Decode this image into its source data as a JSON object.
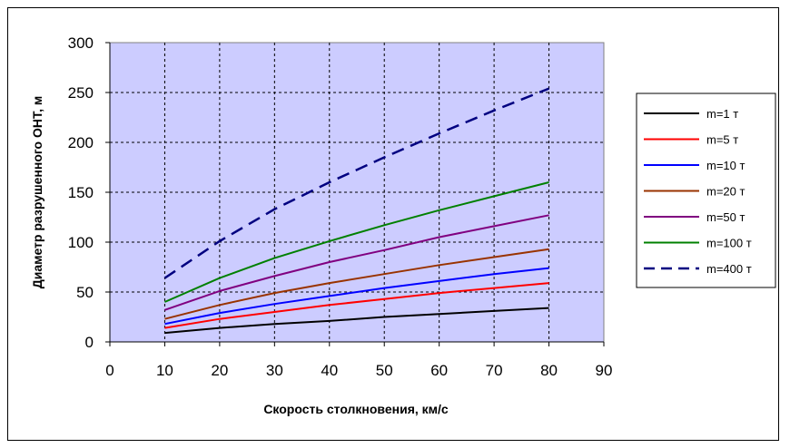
{
  "chart_data": {
    "type": "line",
    "title": "",
    "xlabel": "Скорость столкновения, км/с",
    "ylabel": "Диаметр разрушенного ОНТ, м",
    "xlim": [
      0,
      90
    ],
    "ylim": [
      0,
      300
    ],
    "x_ticks": [
      "0",
      "10",
      "20",
      "30",
      "40",
      "50",
      "60",
      "70",
      "80",
      "90"
    ],
    "y_ticks": [
      "0",
      "50",
      "100",
      "150",
      "200",
      "250",
      "300"
    ],
    "grid": true,
    "legend_position": "right",
    "plot_background": "#ccccff",
    "x": [
      10,
      20,
      30,
      40,
      50,
      60,
      70,
      80
    ],
    "series": [
      {
        "name": "m=1 т",
        "color": "#000000",
        "dashed": false,
        "values": [
          9,
          14,
          18,
          21,
          25,
          28,
          31,
          34
        ]
      },
      {
        "name": "m=5 т",
        "color": "#ff0000",
        "dashed": false,
        "values": [
          14,
          23,
          30,
          37,
          43,
          49,
          54,
          59
        ]
      },
      {
        "name": "m=10 т",
        "color": "#0000ff",
        "dashed": false,
        "values": [
          18,
          29,
          38,
          46,
          54,
          61,
          68,
          74
        ]
      },
      {
        "name": "m=20 т",
        "color": "#993300",
        "dashed": false,
        "values": [
          23,
          37,
          49,
          59,
          68,
          77,
          85,
          93
        ]
      },
      {
        "name": "m=50 т",
        "color": "#800080",
        "dashed": false,
        "values": [
          32,
          51,
          66,
          80,
          92,
          105,
          116,
          127
        ]
      },
      {
        "name": "m=100 т",
        "color": "#008000",
        "dashed": false,
        "values": [
          40,
          64,
          84,
          101,
          117,
          132,
          146,
          160
        ]
      },
      {
        "name": "m=400 т",
        "color": "#000080",
        "dashed": true,
        "values": [
          64,
          101,
          133,
          160,
          185,
          209,
          232,
          254
        ]
      }
    ]
  }
}
